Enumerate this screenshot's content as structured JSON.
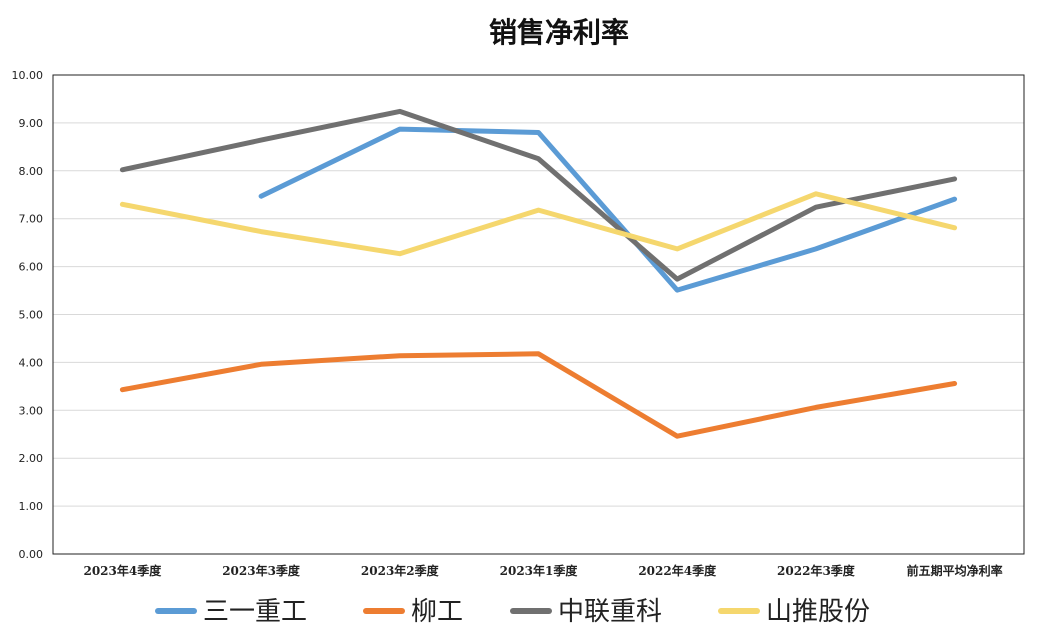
{
  "chart_data": {
    "type": "line",
    "title": "销售净利率",
    "categories": [
      "2023年4季度",
      "2023年3季度",
      "2023年2季度",
      "2023年1季度",
      "2022年4季度",
      "2022年3季度",
      "前五期平均净利率"
    ],
    "ylim": [
      0,
      10
    ],
    "yticks": [
      "0.00",
      "1.00",
      "2.00",
      "3.00",
      "4.00",
      "5.00",
      "6.00",
      "7.00",
      "8.00",
      "9.00",
      "10.00"
    ],
    "grid": true,
    "legend_position": "bottom",
    "series": [
      {
        "name": "三一重工",
        "color": "#5b9bd5",
        "values": [
          null,
          7.47,
          8.87,
          8.8,
          5.51,
          6.37,
          7.41
        ]
      },
      {
        "name": "柳工",
        "color": "#ed7d31",
        "values": [
          3.43,
          3.96,
          4.14,
          4.18,
          2.46,
          3.06,
          3.56
        ]
      },
      {
        "name": "中联重科",
        "color": "#707070",
        "values": [
          8.02,
          8.64,
          9.24,
          8.25,
          5.74,
          7.24,
          7.83
        ]
      },
      {
        "name": "山推股份",
        "color": "#f5d76e",
        "values": [
          7.3,
          6.73,
          6.27,
          7.18,
          6.37,
          7.52,
          6.81
        ]
      }
    ]
  }
}
